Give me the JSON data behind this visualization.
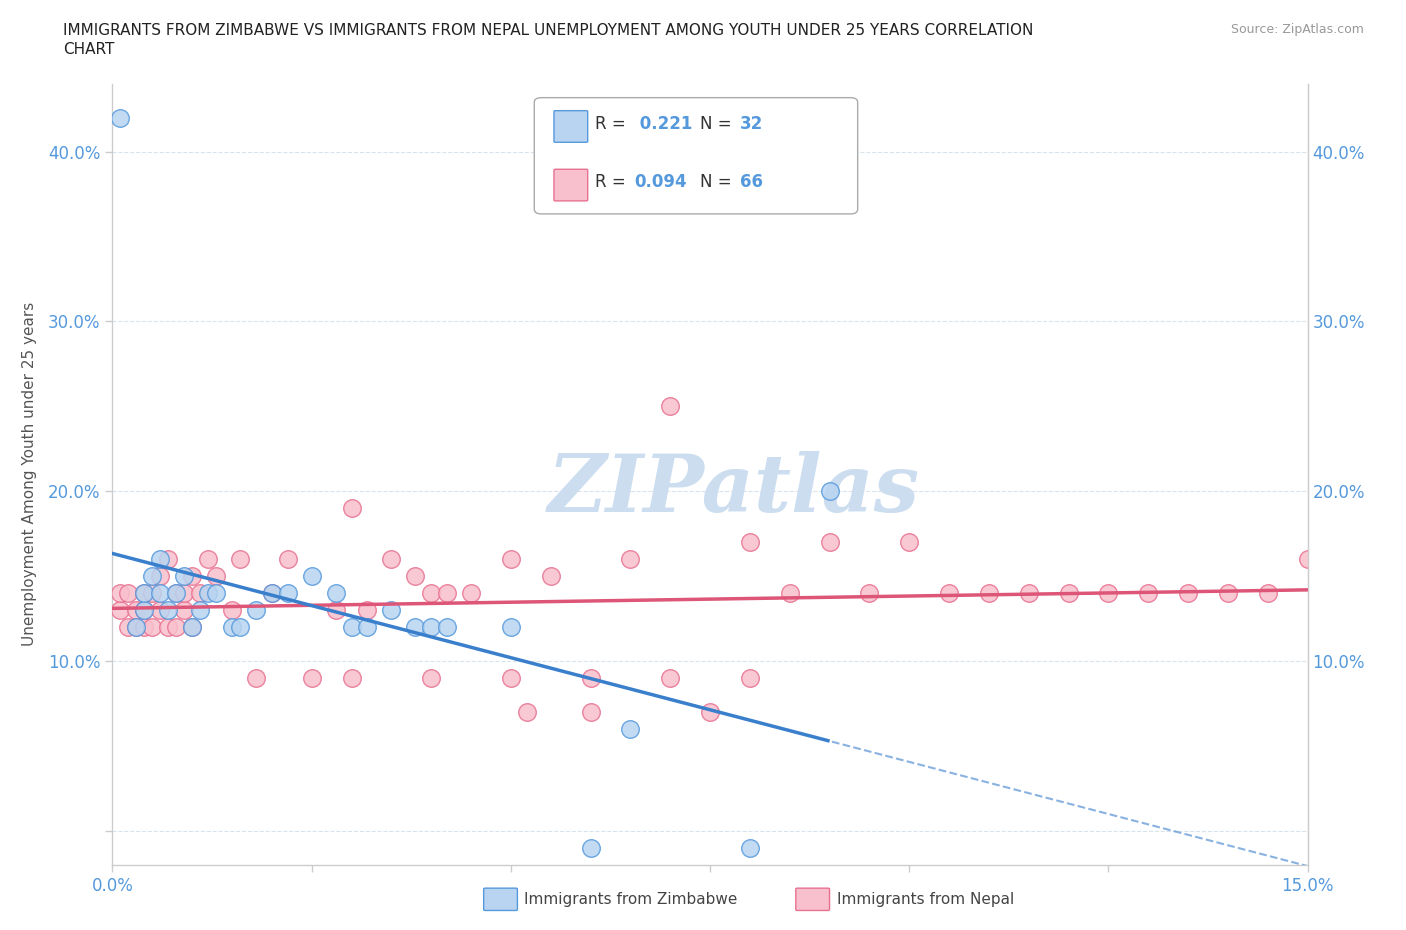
{
  "title_line1": "IMMIGRANTS FROM ZIMBABWE VS IMMIGRANTS FROM NEPAL UNEMPLOYMENT AMONG YOUTH UNDER 25 YEARS CORRELATION",
  "title_line2": "CHART",
  "source": "Source: ZipAtlas.com",
  "ylabel": "Unemployment Among Youth under 25 years",
  "xlim": [
    0.0,
    0.15
  ],
  "ylim": [
    -0.02,
    0.44
  ],
  "xticks": [
    0.0,
    0.025,
    0.05,
    0.075,
    0.1,
    0.125,
    0.15
  ],
  "yticks": [
    0.0,
    0.1,
    0.2,
    0.3,
    0.4
  ],
  "xtick_labels": [
    "0.0%",
    "",
    "",
    "",
    "",
    "",
    "15.0%"
  ],
  "ytick_labels_left": [
    "",
    "10.0%",
    "20.0%",
    "30.0%",
    "40.0%"
  ],
  "ytick_labels_right": [
    "",
    "10.0%",
    "20.0%",
    "30.0%",
    "40.0%"
  ],
  "zimbabwe_fill_color": "#b8d4f0",
  "zimbabwe_edge_color": "#5599dd",
  "nepal_fill_color": "#f8c0cc",
  "nepal_edge_color": "#e87090",
  "zimbabwe_line_color": "#3a7fcc",
  "nepal_line_color": "#dd5577",
  "R_zimbabwe": 0.221,
  "N_zimbabwe": 32,
  "R_nepal": 0.094,
  "N_nepal": 66,
  "watermark": "ZIPatlas",
  "watermark_color": "#ccddf0",
  "background_color": "#ffffff",
  "tick_color": "#5599dd",
  "zimbabwe_x": [
    0.001,
    0.003,
    0.004,
    0.004,
    0.005,
    0.006,
    0.006,
    0.007,
    0.008,
    0.009,
    0.01,
    0.011,
    0.012,
    0.013,
    0.015,
    0.016,
    0.018,
    0.02,
    0.022,
    0.025,
    0.028,
    0.03,
    0.032,
    0.035,
    0.038,
    0.04,
    0.042,
    0.05,
    0.06,
    0.065,
    0.08,
    0.09
  ],
  "zimbabwe_y": [
    0.42,
    0.12,
    0.13,
    0.14,
    0.15,
    0.14,
    0.16,
    0.13,
    0.14,
    0.15,
    0.12,
    0.13,
    0.14,
    0.14,
    0.12,
    0.12,
    0.13,
    0.14,
    0.14,
    0.15,
    0.14,
    0.12,
    0.12,
    0.13,
    0.12,
    0.12,
    0.12,
    0.12,
    -0.01,
    0.06,
    -0.01,
    0.2
  ],
  "nepal_x": [
    0.001,
    0.001,
    0.002,
    0.002,
    0.003,
    0.003,
    0.004,
    0.004,
    0.004,
    0.005,
    0.005,
    0.006,
    0.006,
    0.007,
    0.007,
    0.008,
    0.008,
    0.009,
    0.009,
    0.01,
    0.01,
    0.011,
    0.012,
    0.013,
    0.015,
    0.016,
    0.018,
    0.02,
    0.022,
    0.025,
    0.028,
    0.03,
    0.032,
    0.035,
    0.038,
    0.04,
    0.042,
    0.045,
    0.05,
    0.052,
    0.055,
    0.06,
    0.065,
    0.07,
    0.075,
    0.08,
    0.085,
    0.09,
    0.095,
    0.1,
    0.105,
    0.11,
    0.115,
    0.12,
    0.125,
    0.13,
    0.135,
    0.14,
    0.145,
    0.15,
    0.03,
    0.04,
    0.05,
    0.06,
    0.07,
    0.08
  ],
  "nepal_y": [
    0.13,
    0.14,
    0.12,
    0.14,
    0.12,
    0.13,
    0.12,
    0.13,
    0.14,
    0.12,
    0.14,
    0.13,
    0.15,
    0.12,
    0.16,
    0.12,
    0.14,
    0.13,
    0.14,
    0.12,
    0.15,
    0.14,
    0.16,
    0.15,
    0.13,
    0.16,
    0.09,
    0.14,
    0.16,
    0.09,
    0.13,
    0.19,
    0.13,
    0.16,
    0.15,
    0.14,
    0.14,
    0.14,
    0.16,
    0.07,
    0.15,
    0.07,
    0.16,
    0.25,
    0.07,
    0.17,
    0.14,
    0.17,
    0.14,
    0.17,
    0.14,
    0.14,
    0.14,
    0.14,
    0.14,
    0.14,
    0.14,
    0.14,
    0.14,
    0.16,
    0.09,
    0.09,
    0.09,
    0.09,
    0.09,
    0.09
  ]
}
